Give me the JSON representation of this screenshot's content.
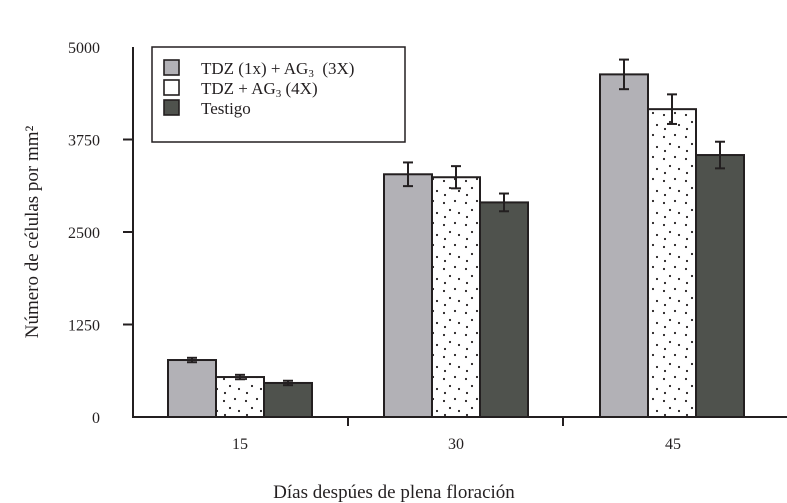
{
  "chart_data": {
    "type": "bar",
    "title": "",
    "xlabel": "Días despúes de plena floración",
    "ylabel": "Número de células por mm²",
    "ylim": [
      0,
      5000
    ],
    "yticks": [
      "0",
      "1250",
      "2500",
      "3750",
      "5000"
    ],
    "categories": [
      "15",
      "30",
      "45"
    ],
    "grid": false,
    "legend_position": "upper left",
    "series": [
      {
        "name": "TDZ (1x) + AG₃ (3X)",
        "color": "#b2b1b6",
        "pattern": "solid",
        "values": [
          770,
          3280,
          4630
        ],
        "errors": [
          30,
          160,
          200
        ]
      },
      {
        "name": "TDZ + AG₃ (4X)",
        "color": "#ffffff",
        "pattern": "dotted",
        "values": [
          540,
          3240,
          4160
        ],
        "errors": [
          30,
          150,
          200
        ]
      },
      {
        "name": "Testigo",
        "color": "#4f524d",
        "pattern": "solid",
        "values": [
          460,
          2900,
          3540
        ],
        "errors": [
          30,
          120,
          180
        ]
      }
    ]
  },
  "legend": {
    "items": [
      {
        "label": "TDZ (1x) + AG",
        "sub": "3",
        "suffix": "  (3X)"
      },
      {
        "label": "TDZ + AG",
        "sub": "3",
        "suffix": " (4X)"
      },
      {
        "label": "Testigo",
        "sub": "",
        "suffix": ""
      }
    ]
  }
}
